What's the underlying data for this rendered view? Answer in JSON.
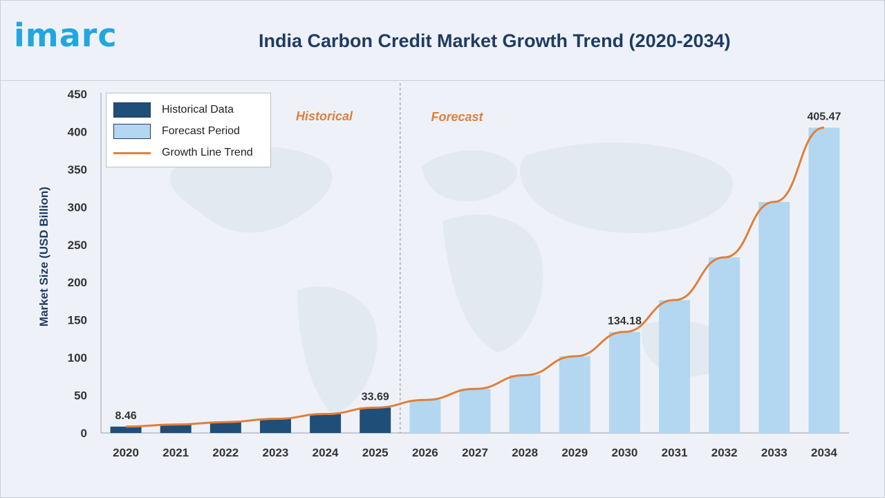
{
  "brand": {
    "logo_text": "imarc",
    "logo_color": "#22a6e0"
  },
  "chart_data": {
    "type": "bar",
    "title": "India Carbon Credit Market Growth Trend (2020-2034)",
    "ylabel": "Market Size (USD Billion)",
    "xlabel": "",
    "ylim": [
      0,
      450
    ],
    "yticks": [
      0,
      50,
      100,
      150,
      200,
      250,
      300,
      350,
      400,
      450
    ],
    "categories": [
      "2020",
      "2021",
      "2022",
      "2023",
      "2024",
      "2025",
      "2026",
      "2027",
      "2028",
      "2029",
      "2030",
      "2031",
      "2032",
      "2033",
      "2034"
    ],
    "values": [
      8.46,
      11.2,
      14.5,
      18.8,
      25.2,
      33.69,
      43.9,
      58.5,
      76.8,
      101.8,
      134.18,
      176.5,
      233.2,
      306.8,
      405.47
    ],
    "historical_count": 6,
    "data_labels": [
      {
        "index": 0,
        "text": "8.46"
      },
      {
        "index": 5,
        "text": "33.69"
      },
      {
        "index": 10,
        "text": "134.18"
      },
      {
        "index": 14,
        "text": "405.47"
      }
    ],
    "region_labels": {
      "historical": "Historical",
      "forecast": "Forecast"
    },
    "legend": {
      "placement": "top-left",
      "historical": "Historical Data",
      "forecast": "Forecast Period",
      "trend": "Growth Line Trend"
    },
    "colors": {
      "historical": "#1f4e79",
      "forecast": "#b3d7f0",
      "trend": "#e07f3a",
      "region_text": "#e07f3a",
      "axis_text": "#333333",
      "title": "#1f3b63"
    },
    "grid": false
  }
}
